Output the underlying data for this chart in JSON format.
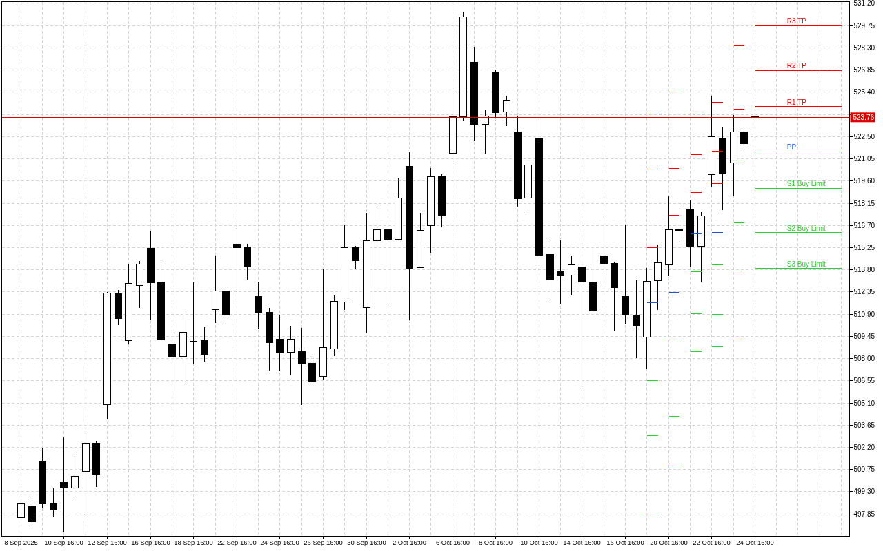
{
  "chart_data": {
    "type": "candlestick",
    "categories": [
      "8 Sep 2025",
      null,
      null,
      null,
      "10 Sep 16:00",
      null,
      null,
      null,
      "12 Sep 16:00",
      null,
      null,
      null,
      "16 Sep 16:00",
      null,
      null,
      null,
      "18 Sep 16:00",
      null,
      null,
      null,
      "22 Sep 16:00",
      null,
      null,
      null,
      "24 Sep 16:00",
      null,
      null,
      null,
      "26 Sep 16:00",
      null,
      null,
      null,
      "30 Sep 16:00",
      null,
      null,
      null,
      "2 Oct 16:00",
      null,
      null,
      null,
      "6 Oct 16:00",
      null,
      null,
      null,
      "8 Oct 16:00",
      null,
      null,
      null,
      "10 Oct 16:00",
      null,
      null,
      null,
      "14 Oct 16:00",
      null,
      null,
      null,
      "16 Oct 16:00",
      null,
      null,
      null,
      "20 Oct 16:00",
      null,
      null,
      null,
      "22 Oct 16:00",
      null,
      null,
      null,
      "24 Oct 16:00",
      null,
      null,
      null,
      null,
      null,
      null,
      null,
      null
    ],
    "ohlc": [
      [
        497.63,
        498.49,
        497.63,
        498.49
      ],
      [
        498.38,
        498.75,
        497.06,
        497.33
      ],
      [
        501.31,
        502.17,
        498.27,
        498.49
      ],
      [
        498.53,
        499.51,
        497.64,
        498.09
      ],
      [
        499.92,
        502.84,
        496.7,
        499.55
      ],
      [
        499.55,
        501.87,
        498.75,
        500.32
      ],
      [
        500.62,
        503.11,
        497.77,
        502.47
      ],
      [
        502.47,
        502.57,
        499.62,
        500.44
      ],
      [
        504.98,
        512.36,
        504.02,
        512.27
      ],
      [
        512.23,
        512.46,
        510.17,
        510.63
      ],
      [
        509.19,
        514.13,
        508.91,
        512.91
      ],
      [
        512.79,
        514.36,
        511.33,
        514.17
      ],
      [
        515.2,
        516.29,
        510.53,
        512.97
      ],
      [
        512.95,
        514.21,
        509.24,
        509.24
      ],
      [
        508.89,
        509.63,
        505.87,
        508.16
      ],
      [
        508.16,
        511.24,
        506.49,
        509.7
      ],
      [
        509.15,
        512.98,
        507.62,
        509.15
      ],
      [
        509.18,
        510.03,
        507.8,
        508.29
      ],
      [
        511.19,
        514.75,
        510.31,
        512.4
      ],
      [
        512.4,
        512.62,
        510.26,
        510.85
      ],
      [
        515.47,
        516.55,
        512.5,
        515.24
      ],
      [
        515.28,
        515.5,
        513.15,
        514.0
      ],
      [
        512.05,
        513.0,
        509.91,
        511.01
      ],
      [
        511.01,
        511.33,
        507.21,
        509.06
      ],
      [
        509.25,
        510.85,
        507.17,
        508.38
      ],
      [
        508.41,
        510.13,
        506.89,
        509.25
      ],
      [
        508.46,
        509.99,
        504.97,
        507.66
      ],
      [
        507.68,
        508.16,
        506.27,
        506.54
      ],
      [
        506.85,
        513.81,
        506.58,
        508.71
      ],
      [
        508.65,
        512.13,
        508.16,
        511.73
      ],
      [
        511.68,
        516.73,
        511.16,
        515.23
      ],
      [
        515.23,
        515.38,
        513.82,
        514.4
      ],
      [
        511.32,
        517.52,
        509.69,
        515.68
      ],
      [
        515.68,
        517.94,
        514.13,
        516.44
      ],
      [
        516.44,
        516.44,
        511.6,
        515.8
      ],
      [
        515.8,
        519.83,
        515.71,
        518.47
      ],
      [
        520.55,
        521.49,
        510.49,
        513.91
      ],
      [
        513.96,
        517.52,
        513.91,
        516.36
      ],
      [
        516.71,
        520.44,
        514.9,
        519.86
      ],
      [
        519.86,
        520.04,
        516.56,
        517.37
      ],
      [
        521.4,
        525.36,
        520.85,
        523.81
      ],
      [
        523.81,
        530.66,
        523.5,
        530.3
      ],
      [
        527.37,
        528.37,
        522.26,
        523.31
      ],
      [
        523.31,
        524.24,
        521.37,
        523.86
      ],
      [
        526.7,
        526.87,
        523.73,
        524.07
      ],
      [
        524.12,
        525.19,
        523.21,
        524.89
      ],
      [
        522.8,
        523.86,
        517.91,
        518.44
      ],
      [
        518.48,
        521.71,
        517.5,
        520.66
      ],
      [
        522.35,
        523.55,
        513.95,
        514.76
      ],
      [
        514.78,
        515.78,
        511.82,
        513.15
      ],
      [
        513.71,
        515.73,
        511.56,
        513.42
      ],
      [
        513.44,
        514.75,
        512.11,
        514.13
      ],
      [
        513.97,
        513.97,
        505.92,
        513.01
      ],
      [
        513.02,
        515.24,
        510.94,
        511.13
      ],
      [
        514.69,
        517.05,
        513.61,
        514.21
      ],
      [
        514.21,
        514.3,
        509.82,
        512.66
      ],
      [
        512.04,
        516.76,
        510.25,
        510.82
      ],
      [
        510.83,
        513.13,
        508.04,
        510.13
      ],
      [
        509.39,
        513.93,
        507.3,
        513.03
      ],
      [
        513.07,
        515.42,
        511.16,
        514.24
      ],
      [
        514.11,
        518.62,
        513.37,
        516.4
      ],
      [
        516.4,
        518.04,
        515.62,
        516.4
      ],
      [
        517.76,
        518.35,
        514.0,
        515.35
      ],
      [
        515.35,
        517.57,
        512.98,
        517.3
      ],
      [
        520.0,
        525.16,
        519.21,
        522.47
      ],
      [
        522.39,
        523.14,
        517.7,
        520.07
      ],
      [
        520.79,
        523.89,
        518.6,
        522.8
      ],
      [
        522.8,
        523.56,
        521.52,
        522.04
      ],
      [
        523.8,
        523.8,
        523.76,
        523.76
      ],
      null,
      null,
      null,
      null,
      null,
      null,
      null,
      null
    ],
    "series": [
      {
        "type": "line",
        "color": "#ff0000",
        "values": [
          null,
          null,
          null,
          null,
          null,
          null,
          null,
          null,
          null,
          null,
          null,
          null,
          null,
          null,
          null,
          null,
          null,
          null,
          null,
          null,
          null,
          null,
          null,
          null,
          null,
          null,
          null,
          null,
          null,
          null,
          null,
          null,
          null,
          null,
          null,
          null,
          null,
          null,
          null,
          null,
          null,
          null,
          null,
          null,
          null,
          null,
          null,
          null,
          null,
          null,
          null,
          null,
          null,
          null,
          null,
          null,
          null,
          null,
          523.96,
          523.96,
          null,
          null,
          524.1,
          524.1,
          null,
          null,
          null,
          null,
          null,
          null,
          null,
          null,
          null,
          null,
          null,
          null,
          null
        ]
      },
      {
        "type": "line",
        "name": "R3 TP",
        "color": "#ff0000",
        "values": [
          null,
          null,
          null,
          null,
          null,
          null,
          null,
          null,
          null,
          null,
          null,
          null,
          null,
          null,
          null,
          null,
          null,
          null,
          null,
          null,
          null,
          null,
          null,
          null,
          null,
          null,
          null,
          null,
          null,
          null,
          null,
          null,
          null,
          null,
          null,
          null,
          null,
          null,
          null,
          null,
          null,
          null,
          null,
          null,
          null,
          null,
          null,
          null,
          null,
          null,
          null,
          null,
          null,
          null,
          null,
          null,
          null,
          null,
          null,
          null,
          525.43,
          525.43,
          null,
          null,
          524.76,
          524.76,
          null,
          null,
          529.74,
          529.74,
          529.74,
          529.74,
          529.74,
          529.74,
          529.74,
          529.74,
          529.74
        ]
      },
      {
        "type": "line",
        "color": "#ff0000",
        "values": [
          null,
          null,
          null,
          null,
          null,
          null,
          null,
          null,
          null,
          null,
          null,
          null,
          null,
          null,
          null,
          null,
          null,
          null,
          null,
          null,
          null,
          null,
          null,
          null,
          null,
          null,
          null,
          null,
          null,
          null,
          null,
          null,
          null,
          null,
          null,
          null,
          null,
          null,
          null,
          null,
          null,
          null,
          null,
          null,
          null,
          null,
          null,
          null,
          null,
          null,
          null,
          null,
          null,
          null,
          null,
          null,
          null,
          null,
          520.37,
          520.37,
          null,
          null,
          521.34,
          521.34,
          null,
          null,
          528.41,
          528.41,
          null,
          null,
          null,
          null,
          null,
          null,
          null,
          null,
          null
        ]
      },
      {
        "type": "line",
        "name": "R2 TP",
        "color": "#ff0000",
        "values": [
          null,
          null,
          null,
          null,
          null,
          null,
          null,
          null,
          null,
          null,
          null,
          null,
          null,
          null,
          null,
          null,
          null,
          null,
          null,
          null,
          null,
          null,
          null,
          null,
          null,
          null,
          null,
          null,
          null,
          null,
          null,
          null,
          null,
          null,
          null,
          null,
          null,
          null,
          null,
          null,
          null,
          null,
          null,
          null,
          null,
          null,
          null,
          null,
          null,
          null,
          null,
          null,
          null,
          null,
          null,
          null,
          null,
          null,
          null,
          null,
          520.44,
          520.44,
          null,
          null,
          521.54,
          521.54,
          null,
          null,
          526.82,
          526.82,
          526.82,
          526.82,
          526.82,
          526.82,
          526.82,
          526.82,
          526.82
        ]
      },
      {
        "type": "line",
        "color": "#ff0000",
        "values": [
          null,
          null,
          null,
          null,
          null,
          null,
          null,
          null,
          null,
          null,
          null,
          null,
          null,
          null,
          null,
          null,
          null,
          null,
          null,
          null,
          null,
          null,
          null,
          null,
          null,
          null,
          null,
          null,
          null,
          null,
          null,
          null,
          null,
          null,
          null,
          null,
          null,
          null,
          null,
          null,
          null,
          null,
          null,
          null,
          null,
          null,
          null,
          null,
          null,
          null,
          null,
          null,
          null,
          null,
          null,
          null,
          null,
          null,
          515.24,
          515.24,
          null,
          null,
          518.87,
          518.87,
          null,
          null,
          524.27,
          524.27,
          null,
          null,
          null,
          null,
          null,
          null,
          null,
          null,
          null
        ]
      },
      {
        "type": "line",
        "name": "R1 TP",
        "color": "#ff0000",
        "values": [
          null,
          null,
          null,
          null,
          null,
          null,
          null,
          null,
          null,
          null,
          null,
          null,
          null,
          null,
          null,
          null,
          null,
          null,
          null,
          null,
          null,
          null,
          null,
          null,
          null,
          null,
          null,
          null,
          null,
          null,
          null,
          null,
          null,
          null,
          null,
          null,
          null,
          null,
          null,
          null,
          null,
          null,
          null,
          null,
          null,
          null,
          null,
          null,
          null,
          null,
          null,
          null,
          null,
          null,
          null,
          null,
          null,
          null,
          null,
          null,
          517.36,
          517.36,
          null,
          null,
          519.42,
          519.42,
          null,
          null,
          524.46,
          524.46,
          524.46,
          524.46,
          524.46,
          524.46,
          524.46,
          524.46,
          524.46
        ]
      },
      {
        "type": "line",
        "color": "#1e56d6",
        "values": [
          null,
          null,
          null,
          null,
          null,
          null,
          null,
          null,
          null,
          null,
          null,
          null,
          null,
          null,
          null,
          null,
          null,
          null,
          null,
          null,
          null,
          null,
          null,
          null,
          null,
          null,
          null,
          null,
          null,
          null,
          null,
          null,
          null,
          null,
          null,
          null,
          null,
          null,
          null,
          null,
          null,
          null,
          null,
          null,
          null,
          null,
          null,
          null,
          null,
          null,
          null,
          null,
          null,
          null,
          null,
          null,
          null,
          null,
          511.64,
          511.64,
          null,
          null,
          516.13,
          516.13,
          null,
          null,
          520.98,
          520.98,
          null,
          null,
          null,
          null,
          null,
          null,
          null,
          null,
          null
        ]
      },
      {
        "type": "line",
        "name": "PP",
        "color": "#1e56d6",
        "values": [
          null,
          null,
          null,
          null,
          null,
          null,
          null,
          null,
          null,
          null,
          null,
          null,
          null,
          null,
          null,
          null,
          null,
          null,
          null,
          null,
          null,
          null,
          null,
          null,
          null,
          null,
          null,
          null,
          null,
          null,
          null,
          null,
          null,
          null,
          null,
          null,
          null,
          null,
          null,
          null,
          null,
          null,
          null,
          null,
          null,
          null,
          null,
          null,
          null,
          null,
          null,
          null,
          null,
          null,
          null,
          null,
          null,
          null,
          null,
          null,
          512.32,
          512.32,
          null,
          null,
          516.22,
          516.22,
          null,
          null,
          521.52,
          521.52,
          521.52,
          521.52,
          521.52,
          521.52,
          521.52,
          521.52,
          521.52
        ]
      },
      {
        "type": "line",
        "color": "#32cd32",
        "values": [
          null,
          null,
          null,
          null,
          null,
          null,
          null,
          null,
          null,
          null,
          null,
          null,
          null,
          null,
          null,
          null,
          null,
          null,
          null,
          null,
          null,
          null,
          null,
          null,
          null,
          null,
          null,
          null,
          null,
          null,
          null,
          null,
          null,
          null,
          null,
          null,
          null,
          null,
          null,
          null,
          null,
          null,
          null,
          null,
          null,
          null,
          null,
          null,
          null,
          null,
          null,
          null,
          null,
          null,
          null,
          null,
          null,
          null,
          506.56,
          506.56,
          null,
          null,
          513.66,
          513.66,
          null,
          null,
          516.85,
          516.85,
          null,
          null,
          null,
          null,
          null,
          null,
          null,
          null,
          null
        ]
      },
      {
        "type": "line",
        "name": "S1 Buy Limit",
        "color": "#32cd32",
        "values": [
          null,
          null,
          null,
          null,
          null,
          null,
          null,
          null,
          null,
          null,
          null,
          null,
          null,
          null,
          null,
          null,
          null,
          null,
          null,
          null,
          null,
          null,
          null,
          null,
          null,
          null,
          null,
          null,
          null,
          null,
          null,
          null,
          null,
          null,
          null,
          null,
          null,
          null,
          null,
          null,
          null,
          null,
          null,
          null,
          null,
          null,
          null,
          null,
          null,
          null,
          null,
          null,
          null,
          null,
          null,
          null,
          null,
          null,
          null,
          null,
          509.21,
          509.21,
          null,
          null,
          514.11,
          514.11,
          null,
          null,
          519.14,
          519.14,
          519.14,
          519.14,
          519.14,
          519.14,
          519.14,
          519.14,
          519.14
        ]
      },
      {
        "type": "line",
        "color": "#32cd32",
        "values": [
          null,
          null,
          null,
          null,
          null,
          null,
          null,
          null,
          null,
          null,
          null,
          null,
          null,
          null,
          null,
          null,
          null,
          null,
          null,
          null,
          null,
          null,
          null,
          null,
          null,
          null,
          null,
          null,
          null,
          null,
          null,
          null,
          null,
          null,
          null,
          null,
          null,
          null,
          null,
          null,
          null,
          null,
          null,
          null,
          null,
          null,
          null,
          null,
          null,
          null,
          null,
          null,
          null,
          null,
          null,
          null,
          null,
          null,
          502.98,
          502.98,
          null,
          null,
          510.92,
          510.92,
          null,
          null,
          513.57,
          513.57,
          null,
          null,
          null,
          null,
          null,
          null,
          null,
          null,
          null
        ]
      },
      {
        "type": "line",
        "name": "S2 Buy Limit",
        "color": "#32cd32",
        "values": [
          null,
          null,
          null,
          null,
          null,
          null,
          null,
          null,
          null,
          null,
          null,
          null,
          null,
          null,
          null,
          null,
          null,
          null,
          null,
          null,
          null,
          null,
          null,
          null,
          null,
          null,
          null,
          null,
          null,
          null,
          null,
          null,
          null,
          null,
          null,
          null,
          null,
          null,
          null,
          null,
          null,
          null,
          null,
          null,
          null,
          null,
          null,
          null,
          null,
          null,
          null,
          null,
          null,
          null,
          null,
          null,
          null,
          null,
          null,
          null,
          504.23,
          504.23,
          null,
          null,
          510.87,
          510.87,
          null,
          null,
          516.22,
          516.22,
          516.22,
          516.22,
          516.22,
          516.22,
          516.22,
          516.22,
          516.22
        ]
      },
      {
        "type": "line",
        "color": "#32cd32",
        "values": [
          null,
          null,
          null,
          null,
          null,
          null,
          null,
          null,
          null,
          null,
          null,
          null,
          null,
          null,
          null,
          null,
          null,
          null,
          null,
          null,
          null,
          null,
          null,
          null,
          null,
          null,
          null,
          null,
          null,
          null,
          null,
          null,
          null,
          null,
          null,
          null,
          null,
          null,
          null,
          null,
          null,
          null,
          null,
          null,
          null,
          null,
          null,
          null,
          null,
          null,
          null,
          null,
          null,
          null,
          null,
          null,
          null,
          null,
          497.85,
          497.85,
          null,
          null,
          508.44,
          508.44,
          null,
          null,
          509.39,
          509.39,
          null,
          null,
          null,
          null,
          null,
          null,
          null,
          null,
          null
        ]
      },
      {
        "type": "line",
        "name": "S3 Buy Limit",
        "color": "#32cd32",
        "values": [
          null,
          null,
          null,
          null,
          null,
          null,
          null,
          null,
          null,
          null,
          null,
          null,
          null,
          null,
          null,
          null,
          null,
          null,
          null,
          null,
          null,
          null,
          null,
          null,
          null,
          null,
          null,
          null,
          null,
          null,
          null,
          null,
          null,
          null,
          null,
          null,
          null,
          null,
          null,
          null,
          null,
          null,
          null,
          null,
          null,
          null,
          null,
          null,
          null,
          null,
          null,
          null,
          null,
          null,
          null,
          null,
          null,
          null,
          null,
          null,
          501.13,
          501.13,
          null,
          null,
          508.76,
          508.76,
          null,
          null,
          513.88,
          513.88,
          513.88,
          513.88,
          513.88,
          513.88,
          513.88,
          513.88,
          513.88
        ]
      }
    ],
    "ref_lines": [
      {
        "axis": "y",
        "value": 523.76,
        "label": "523.76",
        "color": "#dd0000"
      }
    ],
    "ylim": [
      496.42,
      531.31
    ],
    "yticks": [
      {
        "value": 531.2,
        "label": "531.20"
      },
      529.75,
      {
        "value": 528.3,
        "label": "528.30"
      },
      526.85,
      {
        "value": 525.4,
        "label": "525.40"
      },
      {
        "value": 523.95,
        "label": null
      },
      {
        "value": 522.5,
        "label": "522.50"
      },
      521.05,
      {
        "value": 519.6,
        "label": "519.60"
      },
      518.15,
      {
        "value": 516.7,
        "label": "516.70"
      },
      515.25,
      {
        "value": 513.8,
        "label": "513.80"
      },
      512.35,
      {
        "value": 510.9,
        "label": "510.90"
      },
      509.45,
      {
        "value": 508.0,
        "label": "508.00"
      },
      506.55,
      {
        "value": 505.1,
        "label": "505.10"
      },
      503.65,
      {
        "value": 502.2,
        "label": "502.20"
      },
      500.75,
      {
        "value": 499.3,
        "label": "499.30"
      },
      497.85
    ],
    "grid": true
  }
}
